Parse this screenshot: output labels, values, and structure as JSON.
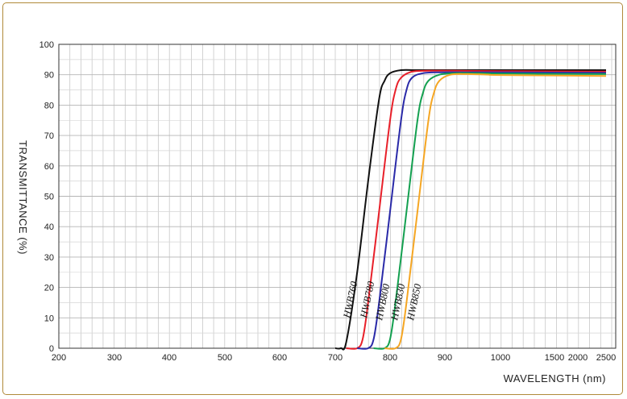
{
  "chart_data": {
    "type": "line",
    "title": "",
    "xlabel": "WAVELENGTH (nm)",
    "ylabel": "TRANSMITTANCE  (%)",
    "ylim": [
      0,
      100
    ],
    "y_ticks": [
      0,
      10,
      20,
      30,
      40,
      50,
      60,
      70,
      80,
      90,
      100
    ],
    "x_ticks": [
      200,
      300,
      400,
      500,
      600,
      700,
      800,
      900,
      1000,
      1500,
      2000,
      2500
    ],
    "x_axis_note": "non-uniform scale: 200–1000 nm linear, then compressed 1000–2500 nm",
    "grid": true,
    "legend": "none (curves labeled inline)",
    "series": [
      {
        "name": "HWB760",
        "color": "#111111",
        "x": [
          700,
          710,
          720,
          740,
          760,
          780,
          790,
          800,
          820,
          850,
          900,
          1000,
          2500
        ],
        "y": [
          0,
          0,
          2,
          25,
          55,
          82,
          88,
          90.5,
          91.5,
          91.5,
          91.5,
          91.5,
          91.5
        ]
      },
      {
        "name": "HWB780",
        "color": "#e8202a",
        "x": [
          720,
          740,
          750,
          760,
          780,
          800,
          810,
          820,
          840,
          870,
          920,
          1000,
          2500
        ],
        "y": [
          0,
          0,
          3,
          15,
          45,
          75,
          85,
          89,
          91,
          91.3,
          91.3,
          91.2,
          91
        ]
      },
      {
        "name": "HWB800",
        "color": "#2a2aa8",
        "x": [
          740,
          760,
          770,
          780,
          800,
          820,
          830,
          840,
          860,
          890,
          940,
          1000,
          2500
        ],
        "y": [
          0,
          0,
          3,
          15,
          45,
          75,
          85,
          89,
          90.5,
          90.8,
          90.8,
          90.8,
          90.6
        ]
      },
      {
        "name": "HWB830",
        "color": "#14a050",
        "x": [
          770,
          790,
          800,
          810,
          830,
          850,
          860,
          870,
          890,
          920,
          960,
          1000,
          2500
        ],
        "y": [
          0,
          0,
          3,
          15,
          45,
          75,
          84,
          88,
          90,
          90.5,
          90.5,
          90.4,
          90.2
        ]
      },
      {
        "name": "HWB850",
        "color": "#f5a623",
        "x": [
          790,
          810,
          820,
          830,
          850,
          870,
          880,
          890,
          910,
          940,
          980,
          1000,
          2500
        ],
        "y": [
          0,
          0,
          3,
          15,
          45,
          75,
          84,
          88,
          90,
          90.2,
          90,
          89.9,
          89.6
        ]
      }
    ]
  }
}
